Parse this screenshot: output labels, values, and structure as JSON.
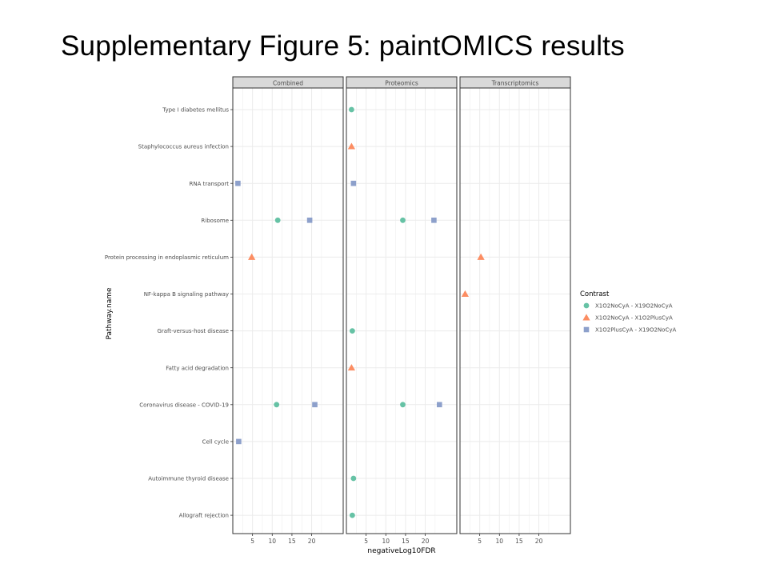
{
  "slide": {
    "title": "Supplementary Figure 5: paintOMICS results"
  },
  "colors": {
    "panel_border": "#333333",
    "grid_major": "#ebebeb",
    "strip_fill": "#d9d9d9",
    "series": [
      "#66c2a5",
      "#fc8d62",
      "#8da0cb"
    ]
  },
  "chart_data": {
    "type": "scatter",
    "xlabel": "negativeLog10FDR",
    "ylabel": "Pathway.name",
    "facets": [
      "Combined",
      "Proteomics",
      "Transcriptomics"
    ],
    "xlim": [
      0,
      28
    ],
    "x_ticks": [
      5,
      10,
      15,
      20
    ],
    "grid": true,
    "legend": {
      "title": "Contrast",
      "position": "right"
    },
    "categories": [
      "Type I diabetes mellitus",
      "Staphylococcus aureus infection",
      "RNA transport",
      "Ribosome",
      "Protein processing in endoplasmic reticulum",
      "NF-kappa B signaling pathway",
      "Graft-versus-host disease",
      "Fatty acid degradation",
      "Coronavirus disease - COVID-19",
      "Cell cycle",
      "Autoimmune thyroid disease",
      "Allograft rejection"
    ],
    "series": [
      {
        "name": "X1O2NoCyA - X19O2NoCyA",
        "shape": "circle",
        "points": [
          {
            "facet": "Combined",
            "y": "Ribosome",
            "x": 11.4
          },
          {
            "facet": "Combined",
            "y": "Coronavirus disease - COVID-19",
            "x": 11.1
          },
          {
            "facet": "Proteomics",
            "y": "Type I diabetes mellitus",
            "x": 1.3
          },
          {
            "facet": "Proteomics",
            "y": "Ribosome",
            "x": 14.3
          },
          {
            "facet": "Proteomics",
            "y": "Graft-versus-host disease",
            "x": 1.5
          },
          {
            "facet": "Proteomics",
            "y": "Coronavirus disease - COVID-19",
            "x": 14.3
          },
          {
            "facet": "Proteomics",
            "y": "Autoimmune thyroid disease",
            "x": 1.8
          },
          {
            "facet": "Proteomics",
            "y": "Allograft rejection",
            "x": 1.5
          }
        ]
      },
      {
        "name": "X1O2NoCyA - X1O2PlusCyA",
        "shape": "triangle",
        "points": [
          {
            "facet": "Combined",
            "y": "Protein processing in endoplasmic reticulum",
            "x": 4.8
          },
          {
            "facet": "Proteomics",
            "y": "Staphylococcus aureus infection",
            "x": 1.3
          },
          {
            "facet": "Proteomics",
            "y": "Fatty acid degradation",
            "x": 1.3
          },
          {
            "facet": "Transcriptomics",
            "y": "Protein processing in endoplasmic reticulum",
            "x": 5.3
          },
          {
            "facet": "Transcriptomics",
            "y": "NF-kappa B signaling pathway",
            "x": 1.3
          }
        ]
      },
      {
        "name": "X1O2PlusCyA - X19O2NoCyA",
        "shape": "square",
        "points": [
          {
            "facet": "Combined",
            "y": "RNA transport",
            "x": 1.3
          },
          {
            "facet": "Combined",
            "y": "Ribosome",
            "x": 19.5
          },
          {
            "facet": "Combined",
            "y": "Coronavirus disease - COVID-19",
            "x": 20.8
          },
          {
            "facet": "Combined",
            "y": "Cell cycle",
            "x": 1.5
          },
          {
            "facet": "Proteomics",
            "y": "RNA transport",
            "x": 1.8
          },
          {
            "facet": "Proteomics",
            "y": "Ribosome",
            "x": 22.2
          },
          {
            "facet": "Proteomics",
            "y": "Coronavirus disease - COVID-19",
            "x": 23.6
          }
        ]
      }
    ]
  }
}
